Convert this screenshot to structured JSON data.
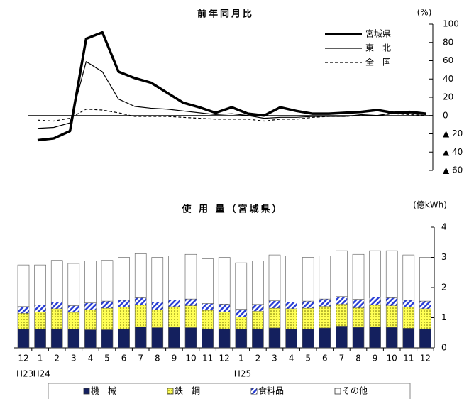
{
  "chart_data": [
    {
      "type": "line",
      "title": "前年同月比",
      "y_unit": "(%)",
      "ylim": [
        -60,
        100
      ],
      "yticks": [
        100,
        80,
        60,
        40,
        20,
        0,
        {
          "value": -20,
          "label": "▲ 20"
        },
        {
          "value": -40,
          "label": "▲ 40"
        },
        {
          "value": -60,
          "label": "▲ 60"
        }
      ],
      "series": [
        {
          "name": "宮城県",
          "color": "#000000",
          "line_width": 3.5,
          "dash": "none",
          "values": [
            -27,
            -25,
            -17,
            84,
            91,
            48,
            41,
            36,
            25,
            14,
            9,
            3,
            9,
            2,
            0,
            9,
            5,
            2,
            2,
            3,
            4,
            6,
            3,
            4,
            2
          ]
        },
        {
          "name": "東　北",
          "color": "#000000",
          "line_width": 1.2,
          "dash": "none",
          "values": [
            -14,
            -13,
            -8,
            59,
            48,
            18,
            10,
            8,
            7,
            5,
            3,
            1,
            2,
            0,
            -3,
            -2,
            -2,
            -1,
            -1,
            -1,
            1,
            0,
            3,
            2,
            1
          ]
        },
        {
          "name": "全　国",
          "color": "#000000",
          "line_width": 1.2,
          "dash": "4,3",
          "values": [
            -5,
            -6,
            -3,
            7,
            6,
            3,
            -1,
            -1,
            -1,
            -2,
            -3,
            -4,
            -4,
            -4,
            -6,
            -4,
            -4,
            -2,
            -1,
            -1,
            0,
            0,
            2,
            1,
            0
          ]
        }
      ]
    },
    {
      "type": "stacked_bar",
      "title": "使 用 量（宮城県）",
      "y_unit": "(億kWh)",
      "categories": [
        "12",
        "1",
        "2",
        "3",
        "4",
        "5",
        "6",
        "7",
        "8",
        "9",
        "10",
        "11",
        "12",
        "1",
        "2",
        "3",
        "4",
        "5",
        "6",
        "7",
        "8",
        "9",
        "10",
        "11",
        "12"
      ],
      "category_groups": [
        "H23",
        "H24",
        null,
        null,
        null,
        null,
        null,
        null,
        null,
        null,
        null,
        null,
        null,
        "H25",
        null,
        null,
        null,
        null,
        null,
        null,
        null,
        null,
        null,
        null,
        null
      ],
      "ylim": [
        0,
        4
      ],
      "yticks": [
        0,
        1,
        2,
        3,
        4
      ],
      "series": [
        {
          "name": "機　械",
          "color": "#14205e",
          "pattern": "none",
          "values": [
            0.62,
            0.62,
            0.63,
            0.62,
            0.6,
            0.6,
            0.63,
            0.7,
            0.67,
            0.68,
            0.67,
            0.63,
            0.63,
            0.62,
            0.63,
            0.66,
            0.62,
            0.62,
            0.66,
            0.72,
            0.68,
            0.7,
            0.68,
            0.65,
            0.63
          ]
        },
        {
          "name": "鉄　鋼",
          "color": "#ffff55",
          "pattern": "dots",
          "values": [
            0.53,
            0.58,
            0.67,
            0.56,
            0.67,
            0.72,
            0.72,
            0.72,
            0.6,
            0.69,
            0.73,
            0.62,
            0.57,
            0.41,
            0.59,
            0.66,
            0.68,
            0.7,
            0.72,
            0.73,
            0.65,
            0.73,
            0.72,
            0.7,
            0.67
          ]
        },
        {
          "name": "食料品",
          "color": "#2a3fd6",
          "pattern": "hatch",
          "values": [
            0.22,
            0.22,
            0.22,
            0.22,
            0.22,
            0.23,
            0.23,
            0.24,
            0.25,
            0.22,
            0.22,
            0.22,
            0.25,
            0.25,
            0.22,
            0.24,
            0.22,
            0.23,
            0.24,
            0.25,
            0.28,
            0.25,
            0.26,
            0.23,
            0.25
          ]
        },
        {
          "name": "その他",
          "color": "#ffffff",
          "pattern": "none",
          "values": [
            1.38,
            1.33,
            1.38,
            1.4,
            1.39,
            1.35,
            1.42,
            1.46,
            1.48,
            1.46,
            1.48,
            1.48,
            1.55,
            1.54,
            1.44,
            1.52,
            1.53,
            1.45,
            1.43,
            1.52,
            1.49,
            1.54,
            1.56,
            1.5,
            1.45
          ]
        }
      ]
    }
  ]
}
